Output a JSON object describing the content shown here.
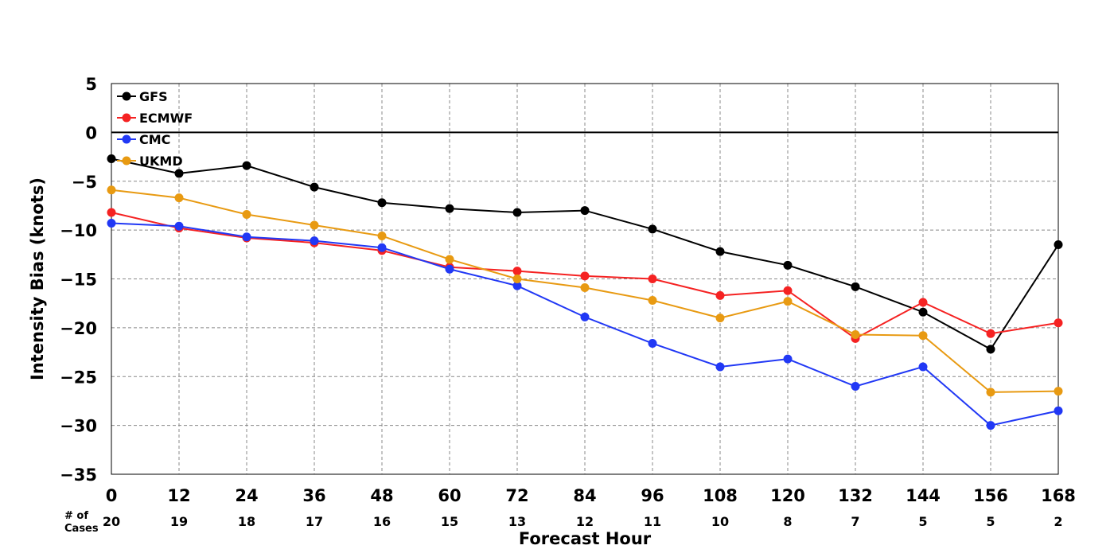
{
  "chart_data": {
    "type": "line",
    "title": "",
    "xlabel": "Forecast Hour",
    "ylabel": "Intensity Bias (knots)",
    "x": [
      0,
      12,
      24,
      36,
      48,
      60,
      72,
      84,
      96,
      108,
      120,
      132,
      144,
      156,
      168
    ],
    "xlim": [
      0,
      168
    ],
    "ylim": [
      -35,
      5
    ],
    "yticks": [
      5,
      0,
      -5,
      -10,
      -15,
      -20,
      -25,
      -30,
      -35
    ],
    "grid": true,
    "zero_line": true,
    "legend_position": "upper-left",
    "cases_header": [
      "# of",
      "Cases"
    ],
    "cases": [
      20,
      19,
      18,
      17,
      16,
      15,
      13,
      12,
      11,
      10,
      8,
      7,
      5,
      5,
      2
    ],
    "series": [
      {
        "name": "GFS",
        "color": "#000000",
        "values": [
          -2.7,
          -4.2,
          -3.4,
          -5.6,
          -7.2,
          -7.8,
          -8.2,
          -8.0,
          -9.9,
          -12.2,
          -13.6,
          -15.8,
          -18.4,
          -22.2,
          -11.5
        ]
      },
      {
        "name": "ECMWF",
        "color": "#f52222",
        "values": [
          -8.2,
          -9.8,
          -10.8,
          -11.3,
          -12.1,
          -13.8,
          -14.2,
          -14.7,
          -15.0,
          -16.7,
          -16.2,
          -21.1,
          -17.4,
          -20.6,
          -19.5
        ]
      },
      {
        "name": "CMC",
        "color": "#2138f5",
        "values": [
          -9.3,
          -9.6,
          -10.7,
          -11.1,
          -11.8,
          -14.0,
          -15.7,
          -18.9,
          -21.6,
          -24.0,
          -23.2,
          -26.0,
          -24.0,
          -30.0,
          -28.5
        ]
      },
      {
        "name": "UKMD",
        "color": "#e89a12",
        "values": [
          -5.9,
          -6.7,
          -8.4,
          -9.5,
          -10.6,
          -13.0,
          -15.0,
          -15.9,
          -17.2,
          -19.0,
          -17.3,
          -20.7,
          -20.8,
          -26.6,
          -26.5
        ]
      }
    ]
  }
}
